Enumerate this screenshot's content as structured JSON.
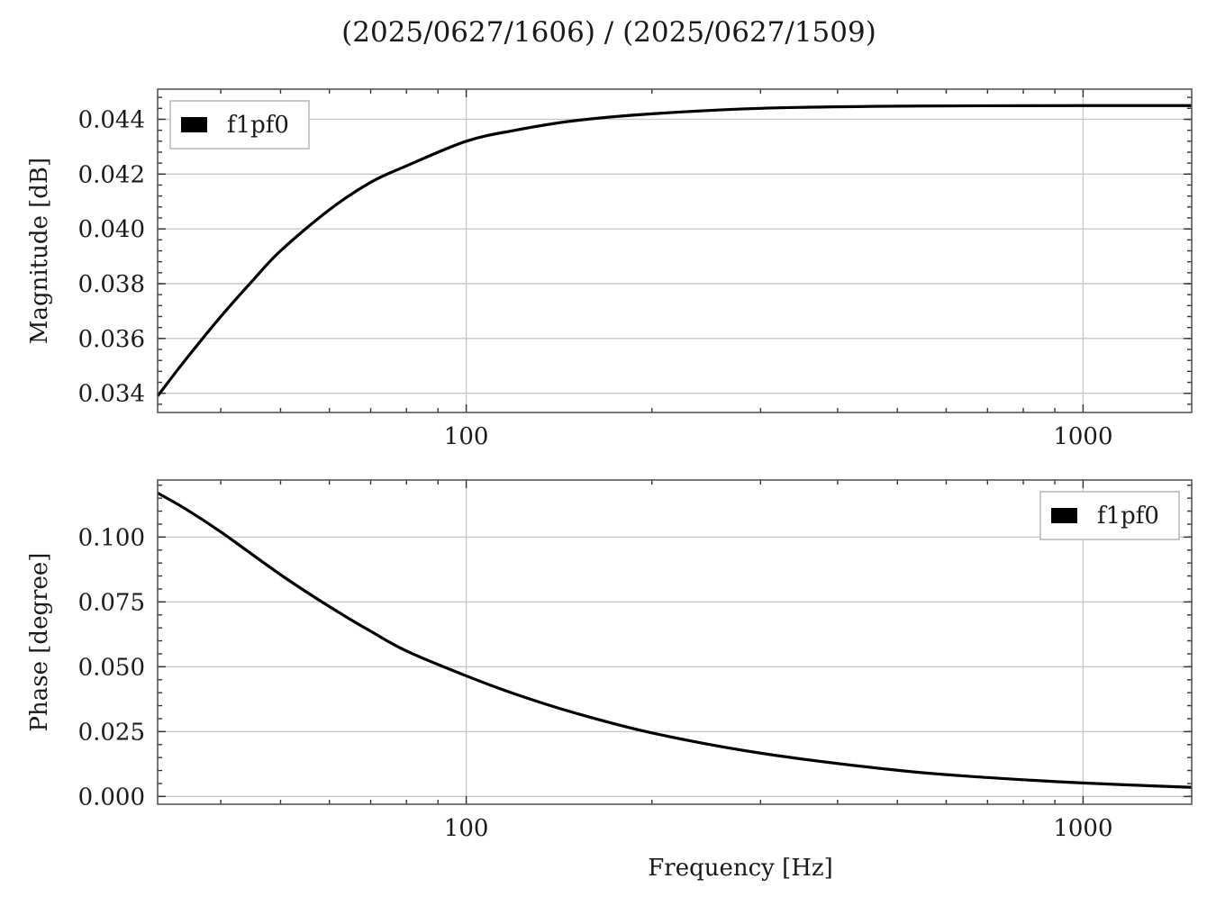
{
  "figure": {
    "title": "(2025/0627/1606) / (2025/0627/1509)"
  },
  "chart_data": [
    {
      "type": "line",
      "title": "",
      "xlabel": "",
      "ylabel": "Magnitude [dB]",
      "xscale": "log",
      "xlim": [
        31.6,
        1500
      ],
      "ylim": [
        0.0333,
        0.0451
      ],
      "xticks": [
        100,
        1000
      ],
      "xtick_labels": [
        "100",
        "1000"
      ],
      "yticks": [
        0.034,
        0.036,
        0.038,
        0.04,
        0.042,
        0.044
      ],
      "ytick_labels": [
        "0.034",
        "0.036",
        "0.038",
        "0.040",
        "0.042",
        "0.044"
      ],
      "grid": true,
      "legend_position": "upper-left",
      "series": [
        {
          "name": "f1pf0",
          "color": "#000000",
          "x": [
            31.6,
            35,
            40,
            45,
            50,
            60,
            70,
            80,
            100,
            120,
            150,
            200,
            300,
            500,
            1000,
            1500
          ],
          "y": [
            0.0339,
            0.0352,
            0.0368,
            0.0381,
            0.0392,
            0.0407,
            0.0417,
            0.0423,
            0.0432,
            0.0436,
            0.04395,
            0.0442,
            0.0444,
            0.04448,
            0.0445,
            0.0445
          ]
        }
      ]
    },
    {
      "type": "line",
      "title": "",
      "xlabel": "Frequency [Hz]",
      "ylabel": "Phase [degree]",
      "xscale": "log",
      "xlim": [
        31.6,
        1500
      ],
      "ylim": [
        -0.003,
        0.122
      ],
      "xticks": [
        100,
        1000
      ],
      "xtick_labels": [
        "100",
        "1000"
      ],
      "yticks": [
        0.0,
        0.025,
        0.05,
        0.075,
        0.1
      ],
      "ytick_labels": [
        "0.000",
        "0.025",
        "0.050",
        "0.075",
        "0.100"
      ],
      "grid": true,
      "legend_position": "upper-right",
      "series": [
        {
          "name": "f1pf0",
          "color": "#000000",
          "x": [
            31.6,
            35,
            40,
            50,
            60,
            70,
            80,
            100,
            120,
            150,
            200,
            300,
            500,
            700,
            1000,
            1500
          ],
          "y": [
            0.117,
            0.111,
            0.102,
            0.0855,
            0.0732,
            0.0637,
            0.0561,
            0.0465,
            0.0395,
            0.0322,
            0.0245,
            0.0167,
            0.0101,
            0.0073,
            0.0052,
            0.0035
          ]
        }
      ]
    }
  ]
}
